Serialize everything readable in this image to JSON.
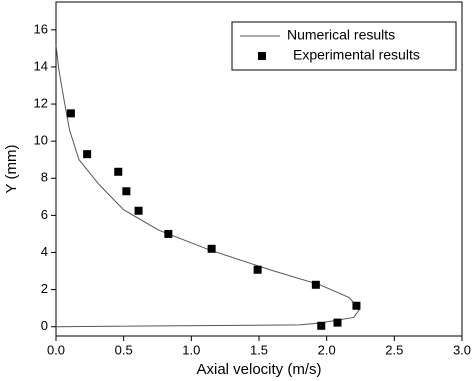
{
  "chart_data": {
    "type": "line",
    "x_label": "Axial velocity (m/s)",
    "y_label": "Y (mm)",
    "xlim": [
      0,
      3
    ],
    "ylim": [
      -0.5,
      17.5
    ],
    "xticks": [
      {
        "value": 0,
        "label": "0.0"
      },
      {
        "value": 0.5,
        "label": "0.5"
      },
      {
        "value": 1,
        "label": "1.0"
      },
      {
        "value": 1.5,
        "label": "1.5"
      },
      {
        "value": 2,
        "label": "2.0"
      },
      {
        "value": 2.5,
        "label": "2.5"
      },
      {
        "value": 3,
        "label": "3.0"
      }
    ],
    "yticks": [
      0,
      2,
      4,
      6,
      8,
      10,
      12,
      14,
      16
    ],
    "legend": "top-right",
    "series": [
      {
        "name": "Numerical results",
        "color": "#555555",
        "style": "line",
        "x": [
          0,
          0.02,
          0.06,
          0.1,
          0.17,
          0.32,
          0.5,
          0.76,
          1.13,
          1.58,
          1.95,
          2.17,
          2.24,
          2.2,
          1.95,
          1.8,
          0
        ],
        "y": [
          15.2,
          13.9,
          12.2,
          10.6,
          9.0,
          7.65,
          6.3,
          5.2,
          4.15,
          3.07,
          2.26,
          1.56,
          0.9,
          0.5,
          0.2,
          0.1,
          0.0
        ]
      },
      {
        "name": "Experimental results",
        "color": "#000000",
        "style": "marker",
        "x": [
          0.11,
          0.23,
          0.46,
          0.52,
          0.61,
          0.83,
          1.15,
          1.49,
          1.92,
          2.22,
          2.08,
          1.96
        ],
        "y": [
          11.5,
          9.3,
          8.35,
          7.3,
          6.25,
          5.0,
          4.2,
          3.07,
          2.26,
          1.13,
          0.22,
          0.05
        ]
      }
    ]
  }
}
